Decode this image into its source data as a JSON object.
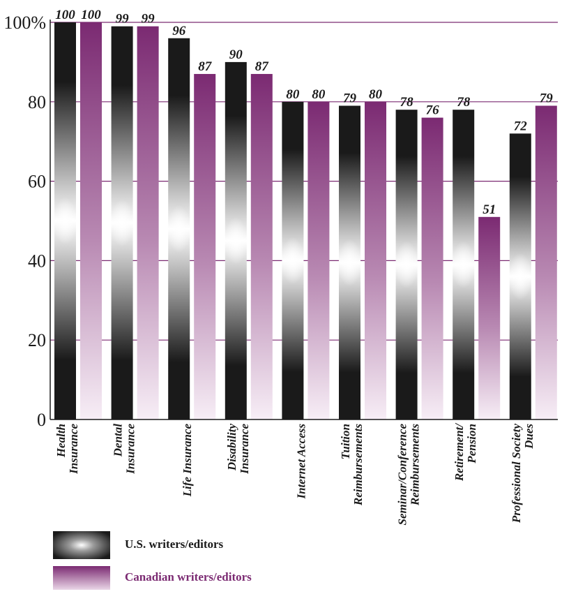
{
  "chart_data": {
    "type": "bar",
    "categories": [
      [
        "Health",
        "Insurance"
      ],
      [
        "Dental",
        "Insurance"
      ],
      [
        "Life Insurance"
      ],
      [
        "Disability",
        "Insurance"
      ],
      [
        "Internet Access"
      ],
      [
        "Tuition",
        "Reimbursements"
      ],
      [
        "Seminar/Conference",
        "Reimbursements"
      ],
      [
        "Retirement/",
        "Pension"
      ],
      [
        "Professional Society",
        "Dues"
      ]
    ],
    "series": [
      {
        "name": "U.S. writers/editors",
        "values": [
          100,
          99,
          96,
          90,
          80,
          79,
          78,
          78,
          72
        ]
      },
      {
        "name": "Canadian writers/editors",
        "values": [
          100,
          99,
          87,
          87,
          80,
          80,
          76,
          51,
          79
        ]
      }
    ],
    "value_labels": [
      [
        "100",
        "99",
        "96",
        "90",
        "80",
        "79",
        "78",
        "78",
        "72"
      ],
      [
        "100",
        "99",
        "87",
        "87",
        "80",
        "80",
        "76",
        "51",
        "79"
      ]
    ],
    "y_ticks": [
      {
        "value": 100,
        "label": "100%"
      },
      {
        "value": 80,
        "label": "80"
      },
      {
        "value": 60,
        "label": "60"
      },
      {
        "value": 40,
        "label": "40"
      },
      {
        "value": 20,
        "label": "20"
      },
      {
        "value": 0,
        "label": "0"
      }
    ],
    "ylim": [
      0,
      100
    ],
    "grid": true,
    "legend_position": "bottom-left",
    "colors": {
      "us": "#1a1a1a",
      "canada": "#7b2a72",
      "grid": "#7b2a72"
    }
  },
  "legend": {
    "us_label": "U.S. writers/editors",
    "canada_label": "Canadian writers/editors"
  }
}
